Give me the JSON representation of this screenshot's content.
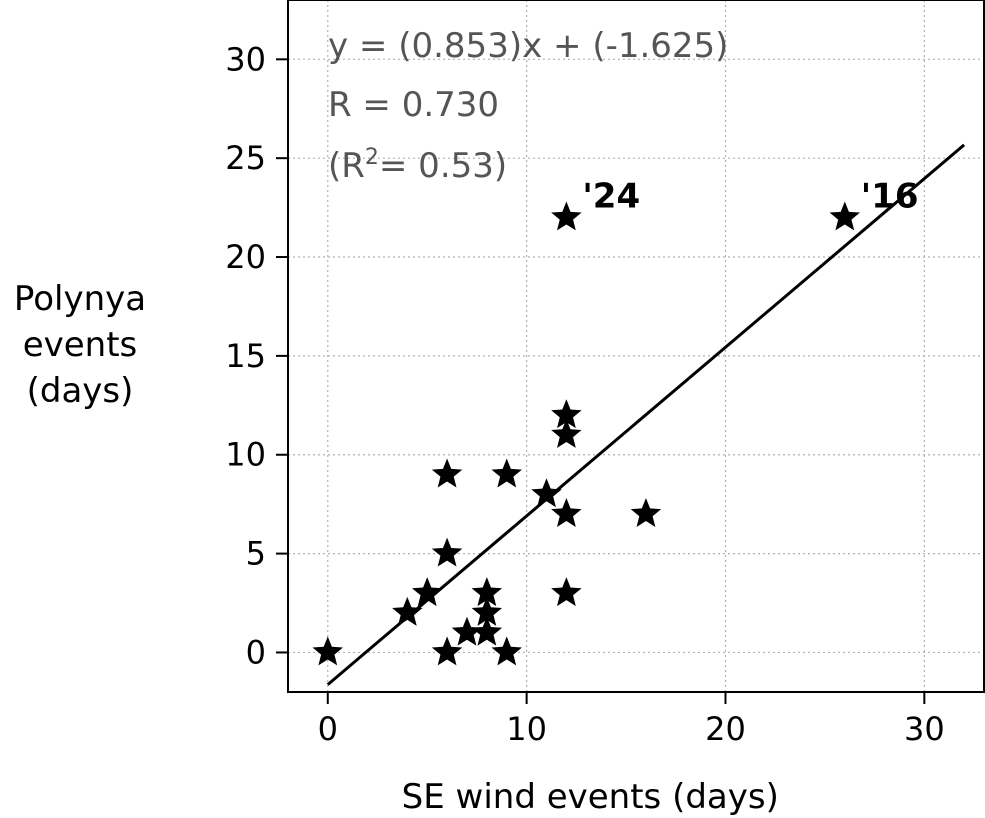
{
  "chart_data": {
    "type": "scatter",
    "xlabel": "SE wind events (days)",
    "ylabel": [
      "Polynya",
      "events",
      "(days)"
    ],
    "xlim": [
      -2,
      33
    ],
    "ylim": [
      -2,
      33
    ],
    "xticks": [
      0,
      10,
      20,
      30
    ],
    "yticks": [
      0,
      5,
      10,
      15,
      20,
      25,
      30
    ],
    "grid": true,
    "marker": "star",
    "marker_color": "#000000",
    "points": [
      {
        "x": 0,
        "y": 0
      },
      {
        "x": 4,
        "y": 2
      },
      {
        "x": 5,
        "y": 3
      },
      {
        "x": 6,
        "y": 0
      },
      {
        "x": 6,
        "y": 5
      },
      {
        "x": 6,
        "y": 9
      },
      {
        "x": 7,
        "y": 1
      },
      {
        "x": 8,
        "y": 1
      },
      {
        "x": 8,
        "y": 2
      },
      {
        "x": 8,
        "y": 3
      },
      {
        "x": 9,
        "y": 0
      },
      {
        "x": 9,
        "y": 9
      },
      {
        "x": 11,
        "y": 8
      },
      {
        "x": 12,
        "y": 3
      },
      {
        "x": 12,
        "y": 7
      },
      {
        "x": 12,
        "y": 11
      },
      {
        "x": 12,
        "y": 12
      },
      {
        "x": 12,
        "y": 22,
        "label": "'24"
      },
      {
        "x": 16,
        "y": 7
      },
      {
        "x": 26,
        "y": 22,
        "label": "'16"
      }
    ],
    "fit_line": {
      "slope": 0.853,
      "intercept": -1.625,
      "x_range": [
        0,
        32
      ],
      "color": "#000000"
    },
    "annotations": {
      "equation": "y = (0.853)x + (-1.625)",
      "r_value": "R = 0.730",
      "r2_prefix": "(R",
      "r2_sup": "2",
      "r2_suffix": "= 0.53)"
    }
  }
}
